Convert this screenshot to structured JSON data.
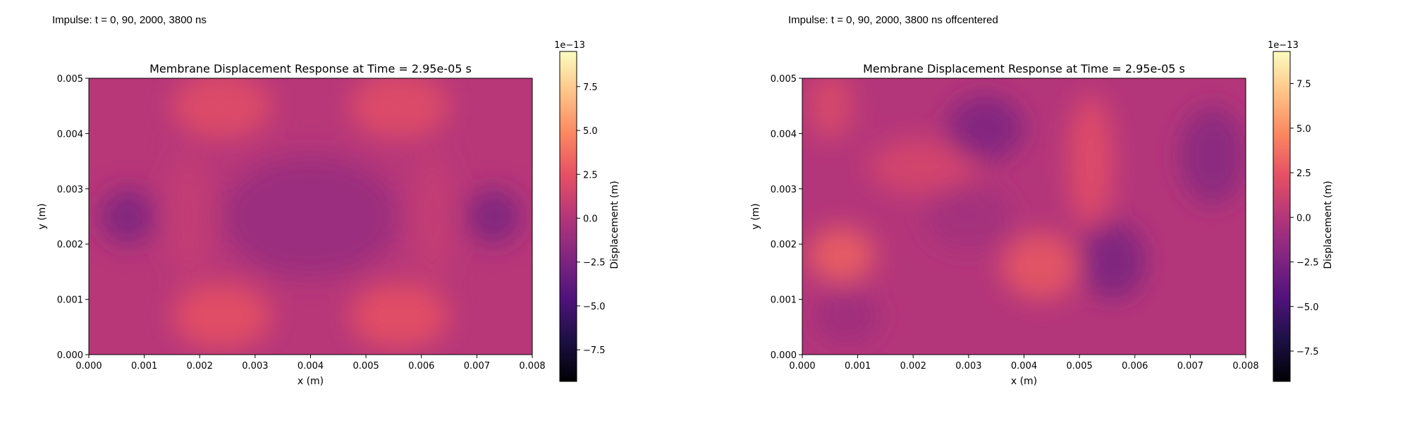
{
  "panels": [
    {
      "caption": "Impulse: t = 0, 90, 2000, 3800 ns"
    },
    {
      "caption": "Impulse: t = 0, 90, 2000, 3800 ns offcentered"
    }
  ],
  "colormap": {
    "name": "magma",
    "stops": [
      "#000004",
      "#1c1044",
      "#4f127b",
      "#812581",
      "#b5367a",
      "#e55064",
      "#fb8761",
      "#fec287",
      "#fcfdbf"
    ]
  },
  "chart_data": [
    {
      "type": "heatmap",
      "title": "Membrane Displacement Response at Time = 2.95e-05 s",
      "xlabel": "x (m)",
      "ylabel": "y (m)",
      "xlim": [
        0,
        0.008
      ],
      "ylim": [
        0,
        0.005
      ],
      "x_ticks": [
        "0.000",
        "0.001",
        "0.002",
        "0.003",
        "0.004",
        "0.005",
        "0.006",
        "0.007",
        "0.008"
      ],
      "y_ticks": [
        "0.000",
        "0.001",
        "0.002",
        "0.003",
        "0.004",
        "0.005"
      ],
      "colorbar": {
        "label": "Displacement (m)",
        "offset_text": "1e−13",
        "range": [
          -9.3,
          9.5
        ],
        "ticks": [
          "−7.5",
          "−5.0",
          "−2.5",
          "0.0",
          "2.5",
          "5.0",
          "7.5"
        ]
      },
      "background_value": 0.2,
      "features": [
        {
          "x": 0.0024,
          "y": 0.0045,
          "value": 2.2,
          "rx": 0.0009,
          "ry": 0.0006
        },
        {
          "x": 0.0056,
          "y": 0.0045,
          "value": 2.2,
          "rx": 0.0009,
          "ry": 0.0006
        },
        {
          "x": 0.0024,
          "y": 0.0007,
          "value": 2.4,
          "rx": 0.0009,
          "ry": 0.0006
        },
        {
          "x": 0.0056,
          "y": 0.0007,
          "value": 2.4,
          "rx": 0.0009,
          "ry": 0.0006
        },
        {
          "x": 0.0007,
          "y": 0.0025,
          "value": -2.6,
          "rx": 0.0005,
          "ry": 0.0005
        },
        {
          "x": 0.0073,
          "y": 0.0025,
          "value": -2.6,
          "rx": 0.0005,
          "ry": 0.0005
        },
        {
          "x": 0.004,
          "y": 0.0025,
          "value": -1.2,
          "rx": 0.0016,
          "ry": 0.0011
        },
        {
          "x": 0.0018,
          "y": 0.0025,
          "value": 0.8,
          "rx": 0.0004,
          "ry": 0.0012
        },
        {
          "x": 0.0062,
          "y": 0.0025,
          "value": 0.8,
          "rx": 0.0004,
          "ry": 0.0012
        }
      ]
    },
    {
      "type": "heatmap",
      "title": "Membrane Displacement Response at Time = 2.95e-05 s",
      "xlabel": "x (m)",
      "ylabel": "y (m)",
      "xlim": [
        0,
        0.008
      ],
      "ylim": [
        0,
        0.005
      ],
      "x_ticks": [
        "0.000",
        "0.001",
        "0.002",
        "0.003",
        "0.004",
        "0.005",
        "0.006",
        "0.007",
        "0.008"
      ],
      "y_ticks": [
        "0.000",
        "0.001",
        "0.002",
        "0.003",
        "0.004",
        "0.005"
      ],
      "colorbar": {
        "label": "Displacement (m)",
        "offset_text": "1e−13",
        "range": [
          -9.2,
          9.3
        ],
        "ticks": [
          "−7.5",
          "−5.0",
          "−2.5",
          "0.0",
          "2.5",
          "5.0",
          "7.5"
        ]
      },
      "background_value": 0.0,
      "features": [
        {
          "x": 0.0007,
          "y": 0.0018,
          "value": 3.0,
          "rx": 0.0006,
          "ry": 0.0005
        },
        {
          "x": 0.0043,
          "y": 0.0016,
          "value": 2.6,
          "rx": 0.0007,
          "ry": 0.0006
        },
        {
          "x": 0.0052,
          "y": 0.0035,
          "value": 2.2,
          "rx": 0.0004,
          "ry": 0.0012
        },
        {
          "x": 0.0005,
          "y": 0.0045,
          "value": 1.8,
          "rx": 0.0004,
          "ry": 0.0006
        },
        {
          "x": 0.0022,
          "y": 0.0034,
          "value": 1.6,
          "rx": 0.001,
          "ry": 0.0005
        },
        {
          "x": 0.0033,
          "y": 0.0041,
          "value": -2.4,
          "rx": 0.0007,
          "ry": 0.0006
        },
        {
          "x": 0.0056,
          "y": 0.0017,
          "value": -2.6,
          "rx": 0.0006,
          "ry": 0.0007
        },
        {
          "x": 0.0074,
          "y": 0.0036,
          "value": -2.0,
          "rx": 0.0006,
          "ry": 0.0009
        },
        {
          "x": 0.0008,
          "y": 0.0007,
          "value": -1.0,
          "rx": 0.0006,
          "ry": 0.0005
        },
        {
          "x": 0.003,
          "y": 0.0025,
          "value": -0.8,
          "rx": 0.0008,
          "ry": 0.0006
        }
      ]
    }
  ]
}
